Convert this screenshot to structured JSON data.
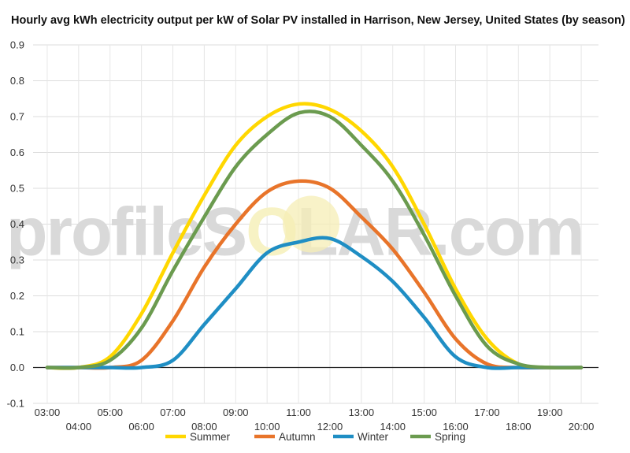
{
  "chart_data": {
    "type": "line",
    "title": "Hourly avg kWh electricity output per kW of Solar PV installed in Harrison, New Jersey, United States (by season)",
    "xlabel": "",
    "ylabel": "",
    "ylim": [
      -0.1,
      0.9
    ],
    "yticks": [
      "-0.1",
      "0.0",
      "0.1",
      "0.2",
      "0.3",
      "0.4",
      "0.5",
      "0.6",
      "0.7",
      "0.8",
      "0.9"
    ],
    "xticks": [
      "03:00",
      "04:00",
      "05:00",
      "06:00",
      "07:00",
      "08:00",
      "09:00",
      "10:00",
      "11:00",
      "12:00",
      "13:00",
      "14:00",
      "15:00",
      "16:00",
      "17:00",
      "18:00",
      "19:00",
      "20:00"
    ],
    "x": [
      3,
      4,
      5,
      6,
      7,
      8,
      9,
      10,
      11,
      12,
      13,
      14,
      15,
      16,
      17,
      18,
      19,
      20
    ],
    "grid": true,
    "legend_position": "bottom",
    "watermark": {
      "left": "profileS",
      "accent": "O",
      "right": "LAR.com"
    },
    "series": [
      {
        "name": "Summer",
        "color": "#FFD700",
        "values": [
          0.0,
          0.0,
          0.03,
          0.15,
          0.32,
          0.48,
          0.62,
          0.7,
          0.735,
          0.72,
          0.66,
          0.56,
          0.4,
          0.22,
          0.08,
          0.01,
          0.0,
          0.0
        ]
      },
      {
        "name": "Autumn",
        "color": "#E8742A",
        "values": [
          0.0,
          0.0,
          0.0,
          0.02,
          0.13,
          0.28,
          0.4,
          0.49,
          0.52,
          0.5,
          0.42,
          0.33,
          0.21,
          0.08,
          0.01,
          0.0,
          0.0,
          0.0
        ]
      },
      {
        "name": "Winter",
        "color": "#1F8EC4",
        "values": [
          0.0,
          0.0,
          0.0,
          0.0,
          0.02,
          0.12,
          0.22,
          0.32,
          0.35,
          0.36,
          0.31,
          0.24,
          0.14,
          0.03,
          0.0,
          0.0,
          0.0,
          0.0
        ]
      },
      {
        "name": "Spring",
        "color": "#6B9B4F",
        "values": [
          0.0,
          0.0,
          0.02,
          0.11,
          0.27,
          0.42,
          0.56,
          0.65,
          0.71,
          0.7,
          0.62,
          0.52,
          0.37,
          0.2,
          0.06,
          0.01,
          0.0,
          0.0
        ]
      }
    ]
  }
}
